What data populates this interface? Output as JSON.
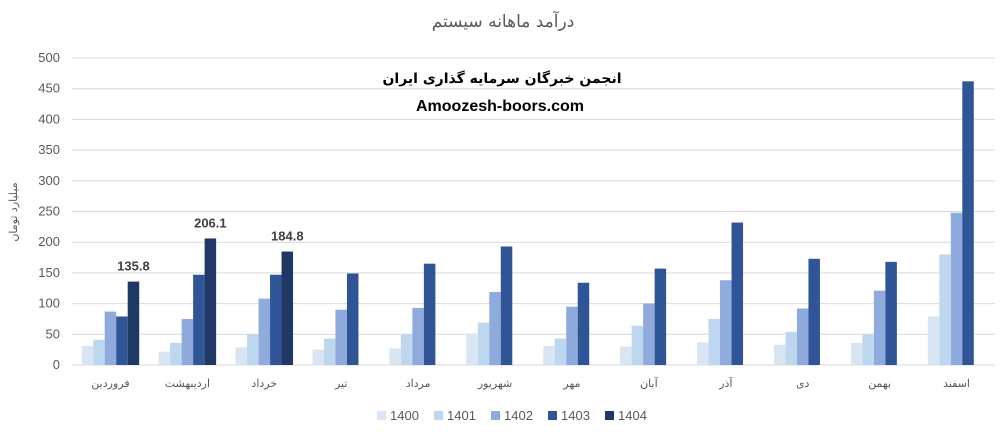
{
  "chart_data": {
    "type": "bar",
    "title": "درآمد ماهانه سیستم",
    "ylabel": "میلیارد تومان",
    "xlabel": "",
    "ylim": [
      0,
      500
    ],
    "yticks": [
      0,
      50,
      100,
      150,
      200,
      250,
      300,
      350,
      400,
      450,
      500
    ],
    "grid": true,
    "legend_position": "bottom",
    "categories": [
      "فروردین",
      "اردیبهشت",
      "خرداد",
      "تیر",
      "مرداد",
      "شهریور",
      "مهر",
      "آبان",
      "آذر",
      "دی",
      "بهمن",
      "اسفند"
    ],
    "series": [
      {
        "name": "1400",
        "color": "#dae5f3",
        "values": [
          31,
          22,
          29,
          25,
          27,
          51,
          31,
          30,
          37,
          33,
          36,
          79
        ]
      },
      {
        "name": "1401",
        "color": "#bdd7ee",
        "values": [
          41,
          36,
          50,
          43,
          50,
          69,
          43,
          64,
          75,
          54,
          50,
          180
        ]
      },
      {
        "name": "1402",
        "color": "#8faadc",
        "values": [
          87,
          75,
          108,
          90,
          93,
          119,
          95,
          100,
          138,
          92,
          121,
          248
        ]
      },
      {
        "name": "1403",
        "color": "#2f5597",
        "values": [
          79,
          147,
          147,
          149,
          165,
          193,
          134,
          157,
          232,
          173,
          168,
          462
        ]
      },
      {
        "name": "1404",
        "color": "#1f3864",
        "values": [
          135.8,
          206.1,
          184.8,
          null,
          null,
          null,
          null,
          null,
          null,
          null,
          null,
          null
        ]
      }
    ],
    "data_labels": [
      {
        "series": "1404",
        "category": "فروردین",
        "text": "135.8"
      },
      {
        "series": "1404",
        "category": "اردیبهشت",
        "text": "206.1"
      },
      {
        "series": "1404",
        "category": "خرداد",
        "text": "184.8"
      }
    ]
  },
  "watermark": {
    "line1": "انجمن خبرگان سرمایه گذاری ایران",
    "line2": "Amoozesh-boors.com"
  }
}
